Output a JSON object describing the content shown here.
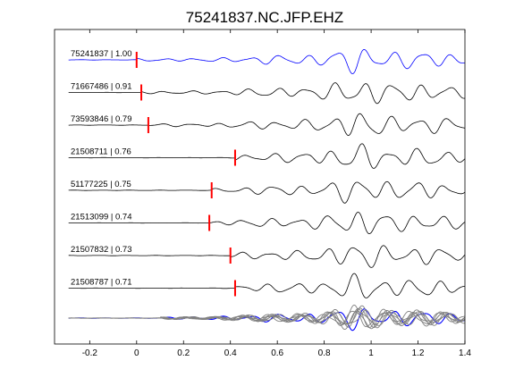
{
  "chart_data": {
    "type": "line",
    "title": "75241837.NC.JFP.EHZ",
    "xlabel": "",
    "ylabel": "",
    "xlim": [
      -0.35,
      1.4
    ],
    "xticks": [
      -0.2,
      0,
      0.2,
      0.4,
      0.6,
      0.8,
      1,
      1.2,
      1.4
    ],
    "xtick_labels": [
      "-0.2",
      "0",
      "0.2",
      "0.4",
      "0.6",
      "0.8",
      "1",
      "1.2",
      "1.4"
    ],
    "grid": false,
    "legend": "none",
    "colors": {
      "reference": "#0000ff",
      "trace": "#000000",
      "pick": "#ff0000",
      "stack_gray": "#808080"
    },
    "series": [
      {
        "label": "75241837 | 1.00",
        "pick": 0.0,
        "color": "#0000ff",
        "amp": 1.0
      },
      {
        "label": "71667486 | 0.91",
        "pick": 0.02,
        "color": "#000000",
        "amp": 1.0
      },
      {
        "label": "73593846 | 0.79",
        "pick": 0.05,
        "color": "#000000",
        "amp": 1.0
      },
      {
        "label": "21508711 | 0.76",
        "pick": 0.42,
        "color": "#000000",
        "amp": 1.0
      },
      {
        "label": "51177225 | 0.75",
        "pick": 0.32,
        "color": "#000000",
        "amp": 1.0
      },
      {
        "label": "21513099 | 0.74",
        "pick": 0.31,
        "color": "#000000",
        "amp": 1.0
      },
      {
        "label": "21507832 | 0.73",
        "pick": 0.4,
        "color": "#000000",
        "amp": 1.0
      },
      {
        "label": "21508787 | 0.71",
        "pick": 0.42,
        "color": "#000000",
        "amp": 1.0
      }
    ],
    "stack": {
      "description_visible": false,
      "count": 8
    }
  }
}
